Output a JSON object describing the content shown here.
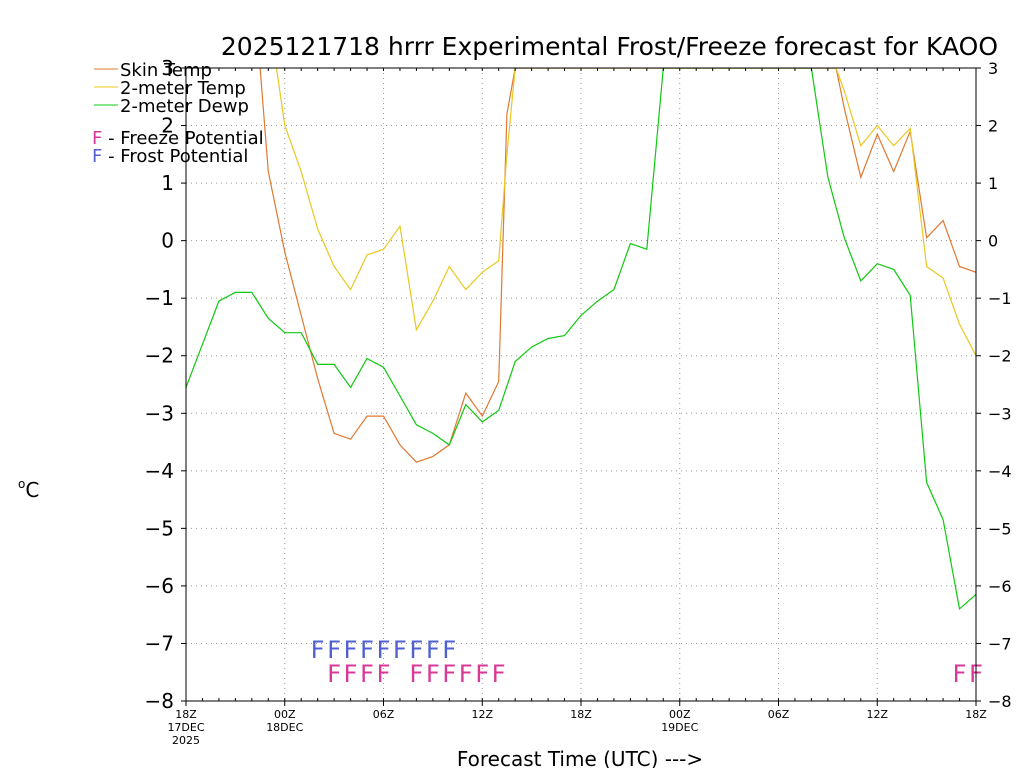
{
  "chart_data": {
    "type": "line",
    "title": "2025121718 hrrr Experimental Frost/Freeze forecast for KAOO",
    "xlabel": "Forecast Time (UTC) --->",
    "ylabel": "°C",
    "ylabel_degree": "o",
    "ylabel_unit": "C",
    "ylim": [
      -8,
      3
    ],
    "xlim": [
      0,
      48
    ],
    "y_ticks": [
      3,
      2,
      1,
      0,
      -1,
      -2,
      -3,
      -4,
      -5,
      -6,
      -7,
      -8
    ],
    "y_tick_labels": [
      "3",
      "2",
      "1",
      "0",
      "−1",
      "−2",
      "−3",
      "−4",
      "−5",
      "−6",
      "−7",
      "−8"
    ],
    "x_ticks": [
      {
        "hour": 0,
        "label": "18Z",
        "sub": [
          "17DEC",
          "2025"
        ]
      },
      {
        "hour": 6,
        "label": "00Z",
        "sub": [
          "18DEC"
        ]
      },
      {
        "hour": 12,
        "label": "06Z",
        "sub": []
      },
      {
        "hour": 18,
        "label": "12Z",
        "sub": []
      },
      {
        "hour": 24,
        "label": "18Z",
        "sub": []
      },
      {
        "hour": 30,
        "label": "00Z",
        "sub": [
          "19DEC"
        ]
      },
      {
        "hour": 36,
        "label": "06Z",
        "sub": []
      },
      {
        "hour": 42,
        "label": "12Z",
        "sub": []
      },
      {
        "hour": 48,
        "label": "18Z",
        "sub": []
      }
    ],
    "grid": true,
    "legend": [
      {
        "name": "Skin Temp",
        "color": "#e07830"
      },
      {
        "name": "2-meter Temp",
        "color": "#e8c820"
      },
      {
        "name": "2-meter Dewp",
        "color": "#10c810"
      }
    ],
    "potential_legend": [
      {
        "letter": "F",
        "text": " - Freeze Potential",
        "color": "#d83898"
      },
      {
        "letter": "F",
        "text": " - Frost Potential",
        "color": "#5060d0"
      }
    ],
    "series": [
      {
        "name": "Skin Temp",
        "color": "#e07830",
        "values": [
          [
            4.5,
            3.0
          ],
          [
            5,
            1.2
          ],
          [
            6,
            -0.2
          ],
          [
            7,
            -1.3
          ],
          [
            8,
            -2.4
          ],
          [
            9,
            -3.35
          ],
          [
            10,
            -3.45
          ],
          [
            11,
            -3.05
          ],
          [
            12,
            -3.05
          ],
          [
            13,
            -3.55
          ],
          [
            14,
            -3.85
          ],
          [
            15,
            -3.75
          ],
          [
            16,
            -3.55
          ],
          [
            17,
            -2.65
          ],
          [
            18,
            -3.05
          ],
          [
            19,
            -2.45
          ],
          [
            19.5,
            2.2
          ],
          [
            20,
            3.0
          ],
          [
            39.5,
            3.0
          ],
          [
            40,
            2.3
          ],
          [
            41,
            1.1
          ],
          [
            42,
            1.85
          ],
          [
            43,
            1.2
          ],
          [
            44,
            1.9
          ],
          [
            45,
            0.05
          ],
          [
            46,
            0.35
          ],
          [
            47,
            -0.45
          ],
          [
            48,
            -0.55
          ]
        ]
      },
      {
        "name": "2-meter Temp",
        "color": "#e8c820",
        "values": [
          [
            5.5,
            3.0
          ],
          [
            6,
            2.0
          ],
          [
            7,
            1.2
          ],
          [
            8,
            0.2
          ],
          [
            9,
            -0.45
          ],
          [
            10,
            -0.85
          ],
          [
            11,
            -0.25
          ],
          [
            12,
            -0.15
          ],
          [
            13,
            0.25
          ],
          [
            14,
            -1.55
          ],
          [
            15,
            -1.05
          ],
          [
            16,
            -0.45
          ],
          [
            17,
            -0.85
          ],
          [
            18,
            -0.55
          ],
          [
            19,
            -0.35
          ],
          [
            19.5,
            1.5
          ],
          [
            20,
            3.0
          ],
          [
            39.5,
            3.0
          ],
          [
            40,
            2.6
          ],
          [
            41,
            1.65
          ],
          [
            42,
            2.0
          ],
          [
            43,
            1.65
          ],
          [
            44,
            1.95
          ],
          [
            45,
            -0.45
          ],
          [
            46,
            -0.65
          ],
          [
            47,
            -1.45
          ],
          [
            48,
            -2.0
          ]
        ]
      },
      {
        "name": "2-meter Dewp",
        "color": "#10c810",
        "values": [
          [
            0,
            -2.55
          ],
          [
            1,
            -1.8
          ],
          [
            2,
            -1.05
          ],
          [
            3,
            -0.9
          ],
          [
            4,
            -0.9
          ],
          [
            5,
            -1.35
          ],
          [
            6,
            -1.6
          ],
          [
            7,
            -1.6
          ],
          [
            8,
            -2.15
          ],
          [
            9,
            -2.15
          ],
          [
            10,
            -2.55
          ],
          [
            11,
            -2.05
          ],
          [
            12,
            -2.2
          ],
          [
            13,
            -2.7
          ],
          [
            14,
            -3.2
          ],
          [
            15,
            -3.35
          ],
          [
            16,
            -3.55
          ],
          [
            17,
            -2.85
          ],
          [
            18,
            -3.15
          ],
          [
            19,
            -2.95
          ],
          [
            20,
            -2.1
          ],
          [
            21,
            -1.85
          ],
          [
            22,
            -1.7
          ],
          [
            23,
            -1.65
          ],
          [
            24,
            -1.3
          ],
          [
            25,
            -1.05
          ],
          [
            26,
            -0.85
          ],
          [
            27,
            -0.05
          ],
          [
            28,
            -0.15
          ],
          [
            29,
            3.0
          ],
          [
            38,
            3.0
          ],
          [
            38.1,
            2.8
          ],
          [
            39,
            1.1
          ],
          [
            40,
            0.05
          ],
          [
            41,
            -0.7
          ],
          [
            42,
            -0.4
          ],
          [
            43,
            -0.5
          ],
          [
            44,
            -0.95
          ],
          [
            45,
            -4.2
          ],
          [
            46,
            -4.85
          ],
          [
            47,
            -6.4
          ],
          [
            48,
            -6.15
          ]
        ]
      }
    ],
    "frost_potential": {
      "color": "#5060d0",
      "letters": "FFFFFFFFF",
      "hours": [
        8,
        9,
        10,
        11,
        12,
        13,
        14,
        15,
        16
      ]
    },
    "freeze_potential": {
      "color": "#d83898",
      "letters": "FFFFFFFFFFFF",
      "hours": [
        9,
        10,
        11,
        12,
        14,
        15,
        16,
        17,
        18,
        19,
        47,
        48
      ]
    }
  }
}
